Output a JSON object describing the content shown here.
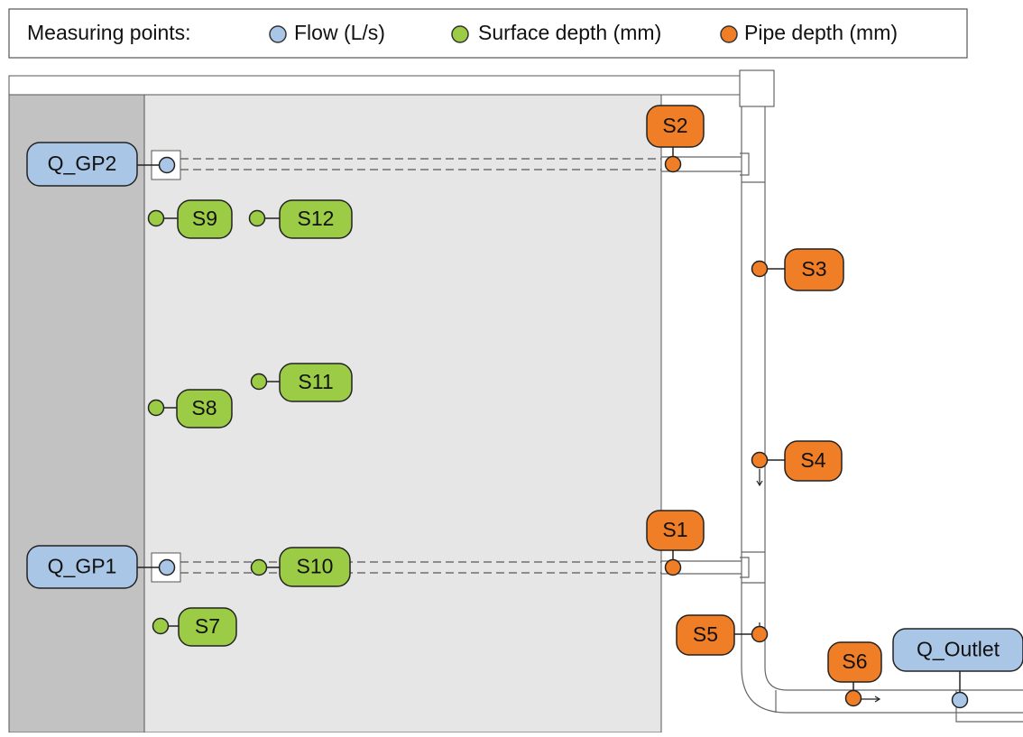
{
  "legend": {
    "title": "Measuring points:",
    "flow": "Flow (L/s)",
    "surface": "Surface depth (mm)",
    "pipe": "Pipe depth (mm)"
  },
  "flow_points": [
    "Q_GP2",
    "Q_GP1",
    "Q_Outlet"
  ],
  "surface_points": [
    "S9",
    "S12",
    "S8",
    "S11",
    "S10",
    "S7"
  ],
  "pipe_points": [
    "S2",
    "S3",
    "S4",
    "S1",
    "S5",
    "S6"
  ]
}
